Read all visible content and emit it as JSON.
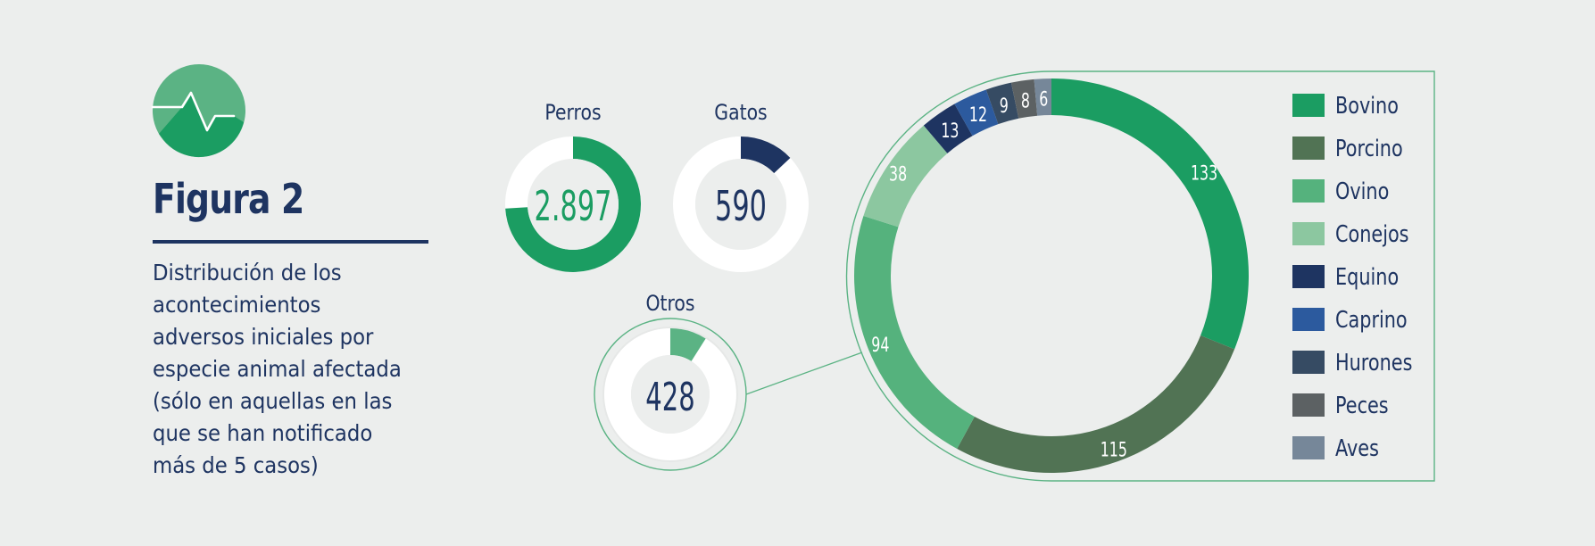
{
  "figure": {
    "title": "Figura 2",
    "description_lines": [
      "Distribución de los",
      "acontecimientos",
      "adversos iniciales por",
      "especie animal afectada",
      "(sólo en aquellas en las",
      "que se han notificado",
      "más de 5 casos)"
    ]
  },
  "icon": {
    "name": "heartbeat-icon",
    "color": "#5bb384"
  },
  "colors": {
    "text": "#1e3461",
    "track": "#ffffff",
    "inner_bg": "#eceeed",
    "frame": "#5bb384"
  },
  "chart_data": [
    {
      "type": "donut",
      "title": "Perros",
      "total_label": "2.897",
      "total_color": "#1b9d62",
      "fill_fraction": 0.74,
      "fill_color": "#1b9d62"
    },
    {
      "type": "donut",
      "title": "Gatos",
      "total_label": "590",
      "total_color": "#1e3461",
      "fill_fraction": 0.13,
      "fill_color": "#1e3461"
    },
    {
      "type": "donut",
      "title": "Otros",
      "total_label": "428",
      "total_color": "#1e3461",
      "fill_fraction": 0.09,
      "fill_color": "#5bb384"
    },
    {
      "type": "pie",
      "series": [
        {
          "name": "Bovino",
          "value": 133,
          "color": "#1b9d62",
          "label": "133"
        },
        {
          "name": "Porcino",
          "value": 115,
          "color": "#517354",
          "label": "115"
        },
        {
          "name": "Ovino",
          "value": 94,
          "color": "#55b27d",
          "label": "94"
        },
        {
          "name": "Conejos",
          "value": 38,
          "color": "#8cc7a0",
          "label": "38"
        },
        {
          "name": "Equino",
          "value": 13,
          "color": "#1e3461",
          "label": "13"
        },
        {
          "name": "Caprino",
          "value": 12,
          "color": "#2c5a9e",
          "label": "12"
        },
        {
          "name": "Hurones",
          "value": 9,
          "color": "#364b63",
          "label": "9"
        },
        {
          "name": "Peces",
          "value": 8,
          "color": "#5c6163",
          "label": "8"
        },
        {
          "name": "Aves",
          "value": 6,
          "color": "#768799",
          "label": "6"
        }
      ],
      "legend_position": "right"
    }
  ]
}
